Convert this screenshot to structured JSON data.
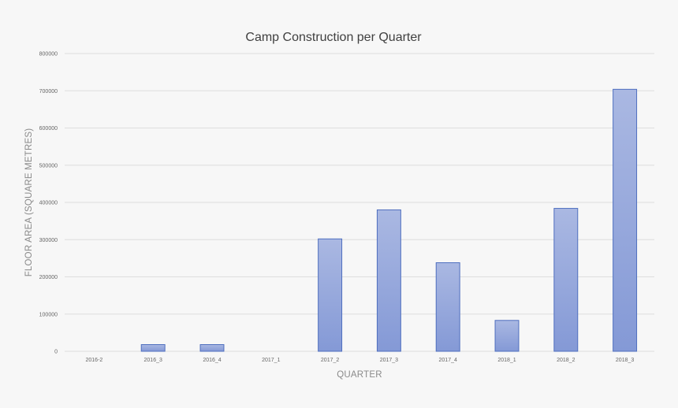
{
  "chart_data": {
    "type": "bar",
    "title": "Camp Construction per Quarter",
    "xlabel": "QUARTER",
    "ylabel": "FLOOR AREA (SQUARE METRES)",
    "categories": [
      "2016-2",
      "2016_3",
      "2016_4",
      "2017_1",
      "2017_2",
      "2017_3",
      "2017_4",
      "2018_1",
      "2018_2",
      "2018_3"
    ],
    "values": [
      0,
      18000,
      18000,
      0,
      302000,
      380000,
      238000,
      83000,
      384000,
      704000
    ],
    "ylim": [
      0,
      800000
    ],
    "yticks": [
      "0",
      "100000",
      "200000",
      "300000",
      "400000",
      "500000",
      "600000",
      "700000",
      "800000"
    ],
    "grid": true,
    "legend": "none",
    "bar_color_top": "#aab8e2",
    "bar_color_bottom": "#8499d6",
    "bar_edge_color": "#4f6fbf"
  }
}
